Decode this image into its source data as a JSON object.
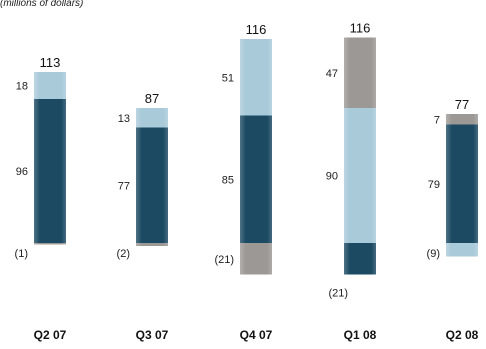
{
  "chart_data": {
    "type": "bar",
    "stacked": true,
    "unit_label": "(millions of dollars)",
    "categories": [
      "Q2 07",
      "Q3 07",
      "Q4 07",
      "Q1 08",
      "Q2 08"
    ],
    "totals": [
      113,
      87,
      116,
      116,
      77
    ],
    "colors": {
      "dark": "#1c4a63",
      "light": "#a9cad9",
      "gray": "#9c9896"
    },
    "segments": [
      [
        {
          "value": -1,
          "label": "(1)",
          "color": "gray"
        },
        {
          "value": 96,
          "label": "96",
          "color": "dark"
        },
        {
          "value": 18,
          "label": "18",
          "color": "light"
        }
      ],
      [
        {
          "value": -2,
          "label": "(2)",
          "color": "gray"
        },
        {
          "value": 77,
          "label": "77",
          "color": "dark"
        },
        {
          "value": 13,
          "label": "13",
          "color": "light"
        }
      ],
      [
        {
          "value": -21,
          "label": "(21)",
          "color": "gray"
        },
        {
          "value": 85,
          "label": "85",
          "color": "dark"
        },
        {
          "value": 51,
          "label": "51",
          "color": "light"
        }
      ],
      [
        {
          "value": -21,
          "label": "(21)",
          "color": "dark"
        },
        {
          "value": 90,
          "label": "90",
          "color": "light"
        },
        {
          "value": 47,
          "label": "47",
          "color": "gray"
        }
      ],
      [
        {
          "value": -9,
          "label": "(9)",
          "color": "light"
        },
        {
          "value": 79,
          "label": "79",
          "color": "dark"
        },
        {
          "value": 7,
          "label": "7",
          "color": "gray"
        }
      ]
    ]
  }
}
